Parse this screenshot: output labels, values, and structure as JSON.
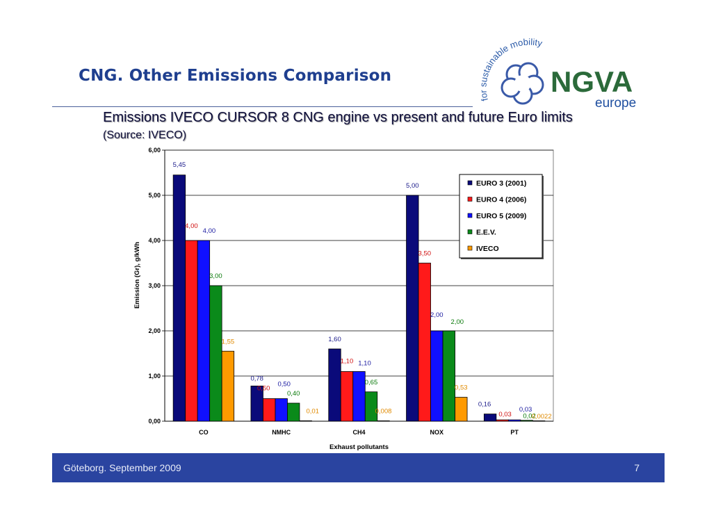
{
  "slide": {
    "title": "CNG. Other Emissions Comparison",
    "subtitle": "Emissions IVECO CURSOR 8 CNG engine vs present and future Euro limits",
    "source": "(Source: IVECO)"
  },
  "logo": {
    "tagline": "for sustainable mobility",
    "brand": "NGVA",
    "sub": "europe",
    "brand_color": "#2b6a3a",
    "sub_color": "#1f4fa0"
  },
  "footer": {
    "text": "Göteborg. September 2009",
    "page": "7"
  },
  "chart_data": {
    "type": "bar",
    "xlabel": "Exhaust pollutants",
    "ylabel": "Emission (Gr), g/kWh",
    "ylim": [
      0,
      6
    ],
    "yticks": [
      "0,00",
      "1,00",
      "2,00",
      "3,00",
      "4,00",
      "5,00",
      "6,00"
    ],
    "grid": true,
    "legend_position": "top-right",
    "categories": [
      "CO",
      "NMHC",
      "CH4",
      "NOX",
      "PT"
    ],
    "series": [
      {
        "name": "EURO 3 (2001)",
        "color": "#0a0a7a",
        "label_color": "#1a1a8a",
        "values": [
          5.45,
          0.78,
          1.6,
          5.0,
          0.16
        ],
        "labels": [
          "5,45",
          "0,78",
          "1,60",
          "5,00",
          "0,16"
        ]
      },
      {
        "name": "EURO 4 (2006)",
        "color": "#ff1a1a",
        "label_color": "#d01010",
        "values": [
          4.0,
          0.5,
          1.1,
          3.5,
          0.03
        ],
        "labels": [
          "4,00",
          "0,50",
          "1,10",
          "3,50",
          "0,03"
        ]
      },
      {
        "name": "EURO 5 (2009)",
        "color": "#1010ff",
        "label_color": "#1a1aa0",
        "values": [
          4.0,
          0.5,
          1.1,
          2.0,
          0.03
        ],
        "labels": [
          "4,00",
          "0,50",
          "1,10",
          "2,00",
          "0,03"
        ]
      },
      {
        "name": "E.E.V.",
        "color": "#0a8a1a",
        "label_color": "#0a7a0a",
        "values": [
          3.0,
          0.4,
          0.65,
          2.0,
          0.02
        ],
        "labels": [
          "3,00",
          "0,40",
          "0,65",
          "2,00",
          "0,02"
        ]
      },
      {
        "name": "IVECO",
        "color": "#ff9a00",
        "label_color": "#e08a00",
        "values": [
          1.55,
          0.01,
          0.008,
          0.53,
          0.0022
        ],
        "labels": [
          "1,55",
          "0,01",
          "0,008",
          "0,53",
          "0,0022"
        ]
      }
    ]
  }
}
